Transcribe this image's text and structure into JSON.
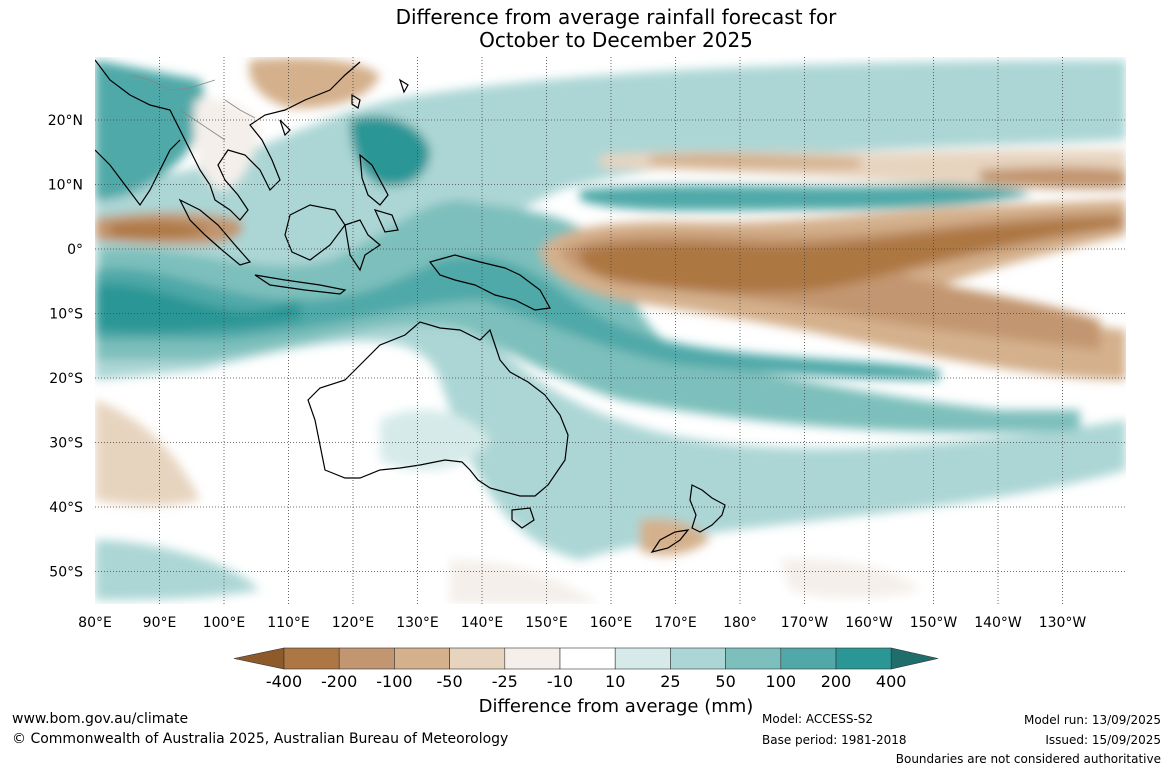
{
  "title": {
    "line1": "Difference from average rainfall forecast for",
    "line2": "October to December 2025"
  },
  "latitude_labels": [
    "20°N",
    "10°N",
    "0°",
    "10°S",
    "20°S",
    "30°S",
    "40°S",
    "50°S"
  ],
  "longitude_labels": [
    "80°E",
    "90°E",
    "100°E",
    "110°E",
    "120°E",
    "130°E",
    "140°E",
    "150°E",
    "160°E",
    "170°E",
    "180°",
    "170°W",
    "160°W",
    "150°W",
    "140°W",
    "130°W"
  ],
  "colorbar": {
    "labels": [
      "-400",
      "-200",
      "-100",
      "-50",
      "-25",
      "-10",
      "10",
      "25",
      "50",
      "100",
      "200",
      "400"
    ],
    "colors": [
      "#8e5a2a",
      "#ad7743",
      "#c29670",
      "#d4b08c",
      "#e7d4bf",
      "#f4efea",
      "#ffffff",
      "#d6ebe9",
      "#acd6d5",
      "#7dbfbc",
      "#50a9a8",
      "#2a9695",
      "#1f6e6c"
    ],
    "axis_label": "Difference from average (mm)"
  },
  "footer": {
    "website": "www.bom.gov.au/climate",
    "copyright": "© Commonwealth of Australia 2025, Australian Bureau of Meteorology",
    "model": "Model: ACCESS-S2",
    "base_period": "Base period: 1981-2018",
    "model_run": "Model run: 13/09/2025",
    "issued": "Issued: 15/09/2025",
    "disclaimer": "Boundaries are not considered authoritative"
  }
}
